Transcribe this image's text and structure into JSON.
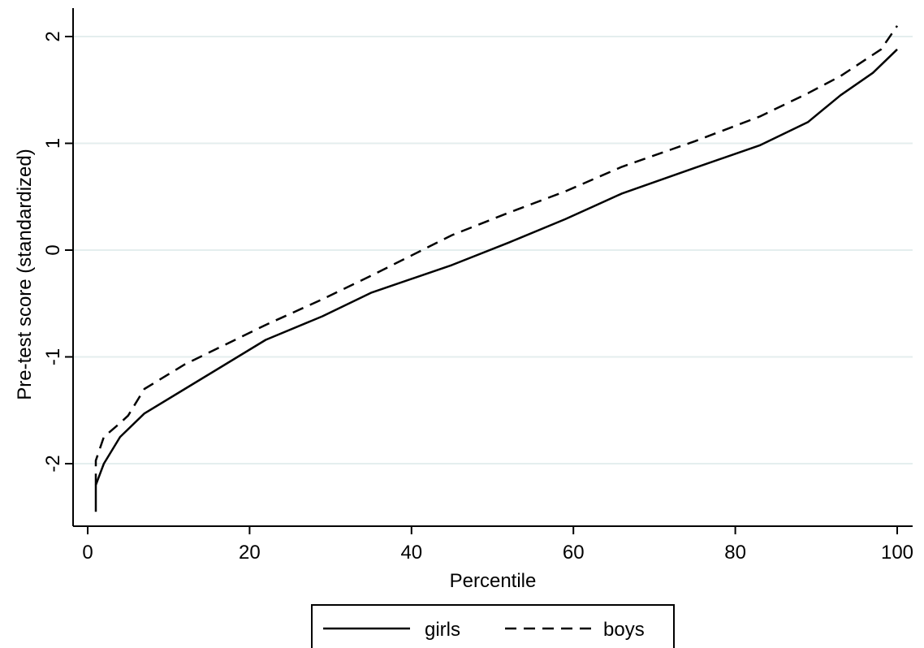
{
  "chart_data": {
    "type": "line",
    "title": "",
    "xlabel": "Percentile",
    "ylabel": "Pre-test score (standardized)",
    "xlim": [
      0,
      100
    ],
    "ylim": [
      -2.5,
      2.1
    ],
    "xticks": [
      0,
      20,
      40,
      60,
      80,
      100
    ],
    "yticks": [
      -2,
      -1,
      0,
      1,
      2
    ],
    "grid": "horizontal",
    "legend_position": "bottom",
    "colors": {
      "background": "#ffffff",
      "grid": "#e4eeee",
      "line": "#000000"
    },
    "series": [
      {
        "name": "girls",
        "style": "solid",
        "x": [
          1,
          1,
          2,
          4,
          7,
          12,
          22,
          29,
          35,
          45,
          52,
          59,
          66,
          75,
          83,
          89,
          93,
          97,
          100
        ],
        "y": [
          -2.45,
          -2.2,
          -2.0,
          -1.75,
          -1.53,
          -1.3,
          -0.84,
          -0.62,
          -0.4,
          -0.14,
          0.07,
          0.29,
          0.53,
          0.77,
          0.98,
          1.2,
          1.45,
          1.66,
          1.88
        ]
      },
      {
        "name": "boys",
        "style": "dashed",
        "x": [
          1,
          1,
          2,
          4,
          5,
          7,
          12,
          22,
          29,
          35,
          40,
          45,
          52,
          59,
          66,
          75,
          83,
          89,
          93,
          98,
          100
        ],
        "y": [
          -2.2,
          -1.97,
          -1.75,
          -1.62,
          -1.55,
          -1.3,
          -1.07,
          -0.7,
          -0.46,
          -0.24,
          -0.05,
          0.14,
          0.35,
          0.55,
          0.78,
          1.02,
          1.25,
          1.47,
          1.63,
          1.88,
          2.1
        ]
      }
    ]
  }
}
